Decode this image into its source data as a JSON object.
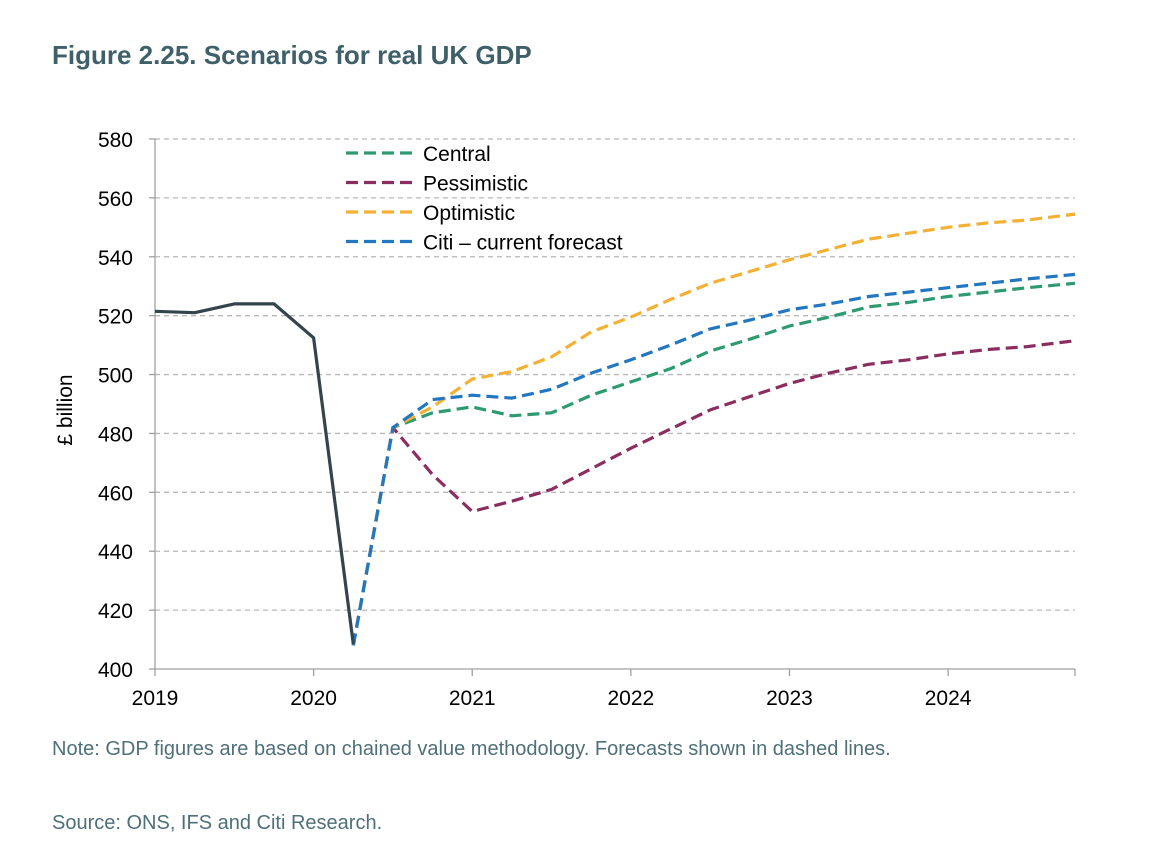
{
  "figure_title": "Figure 2.25. Scenarios for real UK GDP",
  "note": "Note: GDP figures are based on chained value methodology. Forecasts shown in dashed lines.",
  "source": "Source: ONS, IFS and Citi Research.",
  "chart_data": {
    "type": "line",
    "title": "Figure 2.25. Scenarios for real UK GDP",
    "xlabel": "",
    "ylabel": "£ billion",
    "xlim": [
      2019,
      2024.8
    ],
    "ylim": [
      400,
      580
    ],
    "yticks": [
      400,
      420,
      440,
      460,
      480,
      500,
      520,
      540,
      560,
      580
    ],
    "xticks": [
      2019,
      2020,
      2021,
      2022,
      2023,
      2024
    ],
    "xtick_labels": [
      "2019",
      "2020",
      "2021",
      "2022",
      "2023",
      "2024"
    ],
    "grid": "horizontal dashed",
    "legend_position": "top-left",
    "series": [
      {
        "name": "Actual",
        "color": "#34444c",
        "dashed": false,
        "in_legend": false,
        "x": [
          2019.0,
          2019.25,
          2019.5,
          2019.75,
          2020.0,
          2020.25
        ],
        "values": [
          521.5,
          521.0,
          524.0,
          524.0,
          512.5,
          408.5
        ]
      },
      {
        "name": "Central",
        "color": "#2d9a6f",
        "dashed": true,
        "in_legend": true,
        "x": [
          2020.25,
          2020.5,
          2020.75,
          2021.0,
          2021.25,
          2021.5,
          2021.75,
          2022.0,
          2022.25,
          2022.5,
          2022.75,
          2023.0,
          2023.25,
          2023.5,
          2023.75,
          2024.0,
          2024.25,
          2024.5,
          2024.8
        ],
        "values": [
          408,
          482,
          487,
          489,
          486,
          487,
          493,
          497.5,
          502,
          508,
          512,
          516.5,
          519.5,
          523,
          524.5,
          526.5,
          528,
          529.5,
          531
        ]
      },
      {
        "name": "Pessimistic",
        "color": "#8b2e5f",
        "dashed": true,
        "in_legend": true,
        "x": [
          2020.25,
          2020.5,
          2020.75,
          2021.0,
          2021.25,
          2021.5,
          2021.75,
          2022.0,
          2022.25,
          2022.5,
          2022.75,
          2023.0,
          2023.25,
          2023.5,
          2023.75,
          2024.0,
          2024.25,
          2024.5,
          2024.8
        ],
        "values": [
          408,
          482,
          466,
          453.5,
          457,
          461,
          468,
          475,
          481.5,
          488,
          492.5,
          497,
          500.5,
          503.5,
          505,
          507,
          508.5,
          509.5,
          511.5
        ]
      },
      {
        "name": "Optimistic",
        "color": "#f2b134",
        "dashed": true,
        "in_legend": true,
        "x": [
          2020.25,
          2020.5,
          2020.75,
          2021.0,
          2021.25,
          2021.5,
          2021.75,
          2022.0,
          2022.25,
          2022.5,
          2022.75,
          2023.0,
          2023.25,
          2023.5,
          2023.75,
          2024.0,
          2024.25,
          2024.5,
          2024.8
        ],
        "values": [
          408,
          482,
          489,
          498.5,
          501,
          506,
          514.5,
          519.5,
          525.5,
          531,
          535,
          539,
          542.5,
          546,
          548,
          550,
          551.5,
          552.5,
          554.5
        ]
      },
      {
        "name": "Citi – current forecast",
        "color": "#2277c0",
        "dashed": true,
        "in_legend": true,
        "x": [
          2020.25,
          2020.5,
          2020.75,
          2021.0,
          2021.25,
          2021.5,
          2021.75,
          2022.0,
          2022.25,
          2022.5,
          2022.75,
          2023.0,
          2023.25,
          2023.5,
          2023.75,
          2024.0,
          2024.25,
          2024.5,
          2024.8
        ],
        "values": [
          408,
          482,
          491.5,
          493,
          492,
          495,
          500.5,
          505,
          510,
          515.5,
          518.5,
          522,
          524,
          526.5,
          528,
          529.5,
          531,
          532.5,
          534
        ]
      }
    ]
  }
}
